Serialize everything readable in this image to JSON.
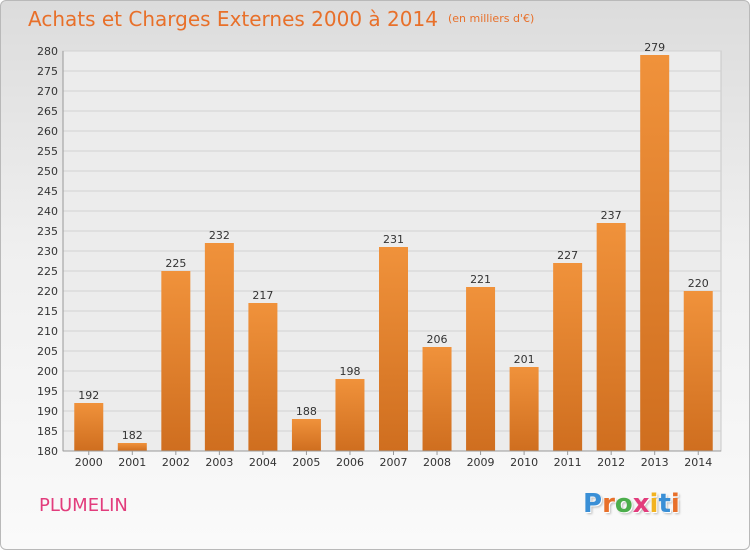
{
  "title": "Achats et Charges Externes 2000 à 2014",
  "subtitle": "(en milliers d'€)",
  "place": "PLUMELIN",
  "logo": {
    "letters": [
      "P",
      "r",
      "o",
      "x",
      "i",
      "t",
      "i"
    ],
    "colors": [
      "#3a8fd6",
      "#e8702a",
      "#4cae4c",
      "#e23c7c",
      "#f2b320",
      "#3a8fd6",
      "#e8702a"
    ]
  },
  "colors": {
    "bar": "#f0923b",
    "bar_dark": "#cf6e1f",
    "title": "#e8702a",
    "place": "#e23c7c"
  },
  "chart_data": {
    "type": "bar",
    "categories": [
      "2000",
      "2001",
      "2002",
      "2003",
      "2004",
      "2005",
      "2006",
      "2007",
      "2008",
      "2009",
      "2010",
      "2011",
      "2012",
      "2013",
      "2014"
    ],
    "values": [
      192,
      182,
      225,
      232,
      217,
      188,
      198,
      231,
      206,
      221,
      201,
      227,
      237,
      279,
      220
    ],
    "ylim": [
      180,
      280
    ],
    "yticks": [
      180,
      185,
      190,
      195,
      200,
      205,
      210,
      215,
      220,
      225,
      230,
      235,
      240,
      245,
      250,
      255,
      260,
      265,
      270,
      275,
      280
    ],
    "grid": true
  }
}
